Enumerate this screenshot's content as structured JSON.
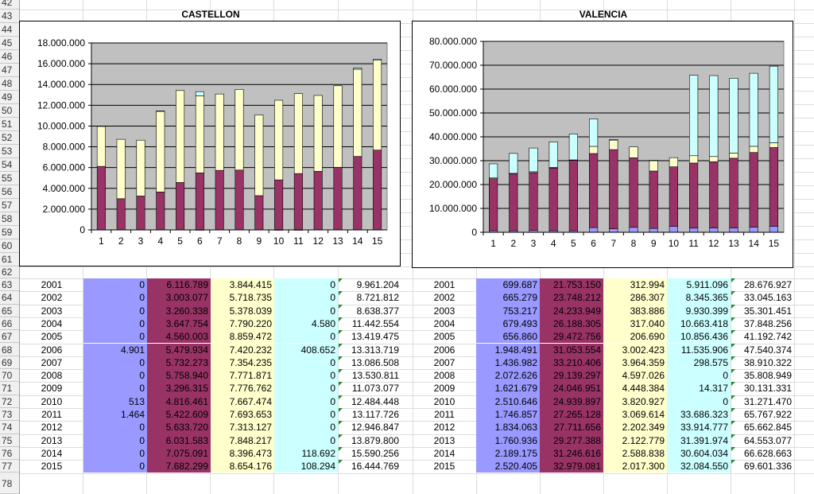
{
  "row_numbers": [
    "42",
    "43",
    "44",
    "45",
    "46",
    "47",
    "48",
    "49",
    "50",
    "51",
    "52",
    "53",
    "54",
    "55",
    "56",
    "57",
    "58",
    "59",
    "60",
    "61",
    "62",
    "63",
    "64",
    "65",
    "66",
    "67",
    "68",
    "69",
    "70",
    "71",
    "72",
    "73",
    "74",
    "75",
    "76",
    "77",
    "78"
  ],
  "colors": {
    "s1": "#9999ff",
    "s2": "#993366",
    "s3": "#ffffcc",
    "s4": "#ccffff",
    "plot_bg": "#c0c0c0"
  },
  "chart_data": [
    {
      "type": "bar",
      "stacked": true,
      "title": "CASTELLON",
      "categories": [
        "1",
        "2",
        "3",
        "4",
        "5",
        "6",
        "7",
        "8",
        "9",
        "10",
        "11",
        "12",
        "13",
        "14",
        "15"
      ],
      "y_ticks": [
        "0",
        "2.000.000",
        "4.000.000",
        "6.000.000",
        "8.000.000",
        "10.000.000",
        "12.000.000",
        "14.000.000",
        "16.000.000",
        "18.000.000"
      ],
      "ylim": [
        0,
        18000000
      ],
      "series": [
        {
          "values": [
            0,
            0,
            0,
            0,
            0,
            4901,
            0,
            0,
            0,
            513,
            1464,
            0,
            0,
            0,
            0
          ]
        },
        {
          "values": [
            6116789,
            3003077,
            3260338,
            3647754,
            4560003,
            5479934,
            5732273,
            5758940,
            3296315,
            4816461,
            5422609,
            5633720,
            6031583,
            7075091,
            7682299
          ]
        },
        {
          "values": [
            3844415,
            5718735,
            5378039,
            7790220,
            8859472,
            7420232,
            7354235,
            7771871,
            7776762,
            7667474,
            7693653,
            7313127,
            7848217,
            8396473,
            8654176
          ]
        },
        {
          "values": [
            0,
            0,
            0,
            4580,
            0,
            408652,
            0,
            0,
            0,
            0,
            0,
            0,
            0,
            118692,
            108294
          ]
        }
      ]
    },
    {
      "type": "bar",
      "stacked": true,
      "title": "VALENCIA",
      "categories": [
        "1",
        "2",
        "3",
        "4",
        "5",
        "6",
        "7",
        "8",
        "9",
        "10",
        "11",
        "12",
        "13",
        "14",
        "15"
      ],
      "y_ticks": [
        "0",
        "10.000.000",
        "20.000.000",
        "30.000.000",
        "40.000.000",
        "50.000.000",
        "60.000.000",
        "70.000.000",
        "80.000.000"
      ],
      "ylim": [
        0,
        80000000
      ],
      "series": [
        {
          "values": [
            699687,
            665279,
            753217,
            679493,
            656860,
            1948491,
            1436982,
            2072626,
            1621679,
            2510646,
            1746857,
            1834063,
            1760936,
            2189175,
            2520405
          ]
        },
        {
          "values": [
            21753150,
            23748212,
            24233949,
            26188305,
            29472756,
            31053554,
            33210406,
            29139297,
            24046951,
            24939897,
            27265128,
            27711656,
            29277388,
            31246616,
            32979081
          ]
        },
        {
          "values": [
            312994,
            286307,
            383886,
            317040,
            206690,
            3002423,
            3964359,
            4597026,
            4448384,
            3820927,
            3069614,
            2202349,
            2122779,
            2588838,
            2017300
          ]
        },
        {
          "values": [
            5911096,
            8345365,
            9930399,
            10663418,
            10856436,
            11535906,
            298575,
            0,
            14317,
            0,
            33686323,
            33914777,
            31391974,
            30604034,
            32084550
          ]
        }
      ]
    }
  ],
  "tables": {
    "castellon": {
      "rows": [
        {
          "year": "2001",
          "c1": "0",
          "c2": "6.116.789",
          "c3": "3.844.415",
          "c4": "0",
          "total": "9.961.204"
        },
        {
          "year": "2002",
          "c1": "0",
          "c2": "3.003.077",
          "c3": "5.718.735",
          "c4": "0",
          "total": "8.721.812"
        },
        {
          "year": "2003",
          "c1": "0",
          "c2": "3.260.338",
          "c3": "5.378.039",
          "c4": "0",
          "total": "8.638.377"
        },
        {
          "year": "2004",
          "c1": "0",
          "c2": "3.647.754",
          "c3": "7.790.220",
          "c4": "4.580",
          "total": "11.442.554"
        },
        {
          "year": "2005",
          "c1": "0",
          "c2": "4.560.003",
          "c3": "8.859.472",
          "c4": "0",
          "total": "13.419.475"
        },
        {
          "year": "2006",
          "c1": "4.901",
          "c2": "5.479.934",
          "c3": "7.420.232",
          "c4": "408.652",
          "total": "13.313.719"
        },
        {
          "year": "2007",
          "c1": "0",
          "c2": "5.732.273",
          "c3": "7.354.235",
          "c4": "0",
          "total": "13.086.508"
        },
        {
          "year": "2008",
          "c1": "0",
          "c2": "5.758.940",
          "c3": "7.771.871",
          "c4": "0",
          "total": "13.530.811"
        },
        {
          "year": "2009",
          "c1": "0",
          "c2": "3.296.315",
          "c3": "7.776.762",
          "c4": "0",
          "total": "11.073.077"
        },
        {
          "year": "2010",
          "c1": "513",
          "c2": "4.816.461",
          "c3": "7.667.474",
          "c4": "0",
          "total": "12.484.448"
        },
        {
          "year": "2011",
          "c1": "1.464",
          "c2": "5.422.609",
          "c3": "7.693.653",
          "c4": "0",
          "total": "13.117.726"
        },
        {
          "year": "2012",
          "c1": "0",
          "c2": "5.633.720",
          "c3": "7.313.127",
          "c4": "0",
          "total": "12.946.847"
        },
        {
          "year": "2013",
          "c1": "0",
          "c2": "6.031.583",
          "c3": "7.848.217",
          "c4": "0",
          "total": "13.879.800"
        },
        {
          "year": "2014",
          "c1": "0",
          "c2": "7.075.091",
          "c3": "8.396.473",
          "c4": "118.692",
          "total": "15.590.256"
        },
        {
          "year": "2015",
          "c1": "0",
          "c2": "7.682.299",
          "c3": "8.654.176",
          "c4": "108.294",
          "total": "16.444.769"
        }
      ]
    },
    "valencia": {
      "rows": [
        {
          "year": "2001",
          "c1": "699.687",
          "c2": "21.753.150",
          "c3": "312.994",
          "c4": "5.911.096",
          "total": "28.676.927"
        },
        {
          "year": "2002",
          "c1": "665.279",
          "c2": "23.748.212",
          "c3": "286.307",
          "c4": "8.345.365",
          "total": "33.045.163"
        },
        {
          "year": "2003",
          "c1": "753.217",
          "c2": "24.233.949",
          "c3": "383.886",
          "c4": "9.930.399",
          "total": "35.301.451"
        },
        {
          "year": "2004",
          "c1": "679.493",
          "c2": "26.188.305",
          "c3": "317.040",
          "c4": "10.663.418",
          "total": "37.848.256"
        },
        {
          "year": "2005",
          "c1": "656.860",
          "c2": "29.472.756",
          "c3": "206.690",
          "c4": "10.856.436",
          "total": "41.192.742"
        },
        {
          "year": "2006",
          "c1": "1.948.491",
          "c2": "31.053.554",
          "c3": "3.002.423",
          "c4": "11.535.906",
          "total": "47.540.374"
        },
        {
          "year": "2007",
          "c1": "1.436.982",
          "c2": "33.210.406",
          "c3": "3.964.359",
          "c4": "298.575",
          "total": "38.910.322"
        },
        {
          "year": "2008",
          "c1": "2.072.626",
          "c2": "29.139.297",
          "c3": "4.597.026",
          "c4": "0",
          "total": "35.808.949"
        },
        {
          "year": "2009",
          "c1": "1.621.679",
          "c2": "24.046.951",
          "c3": "4.448.384",
          "c4": "14.317",
          "total": "30.131.331"
        },
        {
          "year": "2010",
          "c1": "2.510.646",
          "c2": "24.939.897",
          "c3": "3.820.927",
          "c4": "0",
          "total": "31.271.470"
        },
        {
          "year": "2011",
          "c1": "1.746.857",
          "c2": "27.265.128",
          "c3": "3.069.614",
          "c4": "33.686.323",
          "total": "65.767.922"
        },
        {
          "year": "2012",
          "c1": "1.834.063",
          "c2": "27.711.656",
          "c3": "2.202.349",
          "c4": "33.914.777",
          "total": "65.662.845"
        },
        {
          "year": "2013",
          "c1": "1.760.936",
          "c2": "29.277.388",
          "c3": "2.122.779",
          "c4": "31.391.974",
          "total": "64.553.077"
        },
        {
          "year": "2014",
          "c1": "2.189.175",
          "c2": "31.246.616",
          "c3": "2.588.838",
          "c4": "30.604.034",
          "total": "66.628.663"
        },
        {
          "year": "2015",
          "c1": "2.520.405",
          "c2": "32.979.081",
          "c3": "2.017.300",
          "c4": "32.084.550",
          "total": "69.601.336"
        }
      ]
    }
  }
}
